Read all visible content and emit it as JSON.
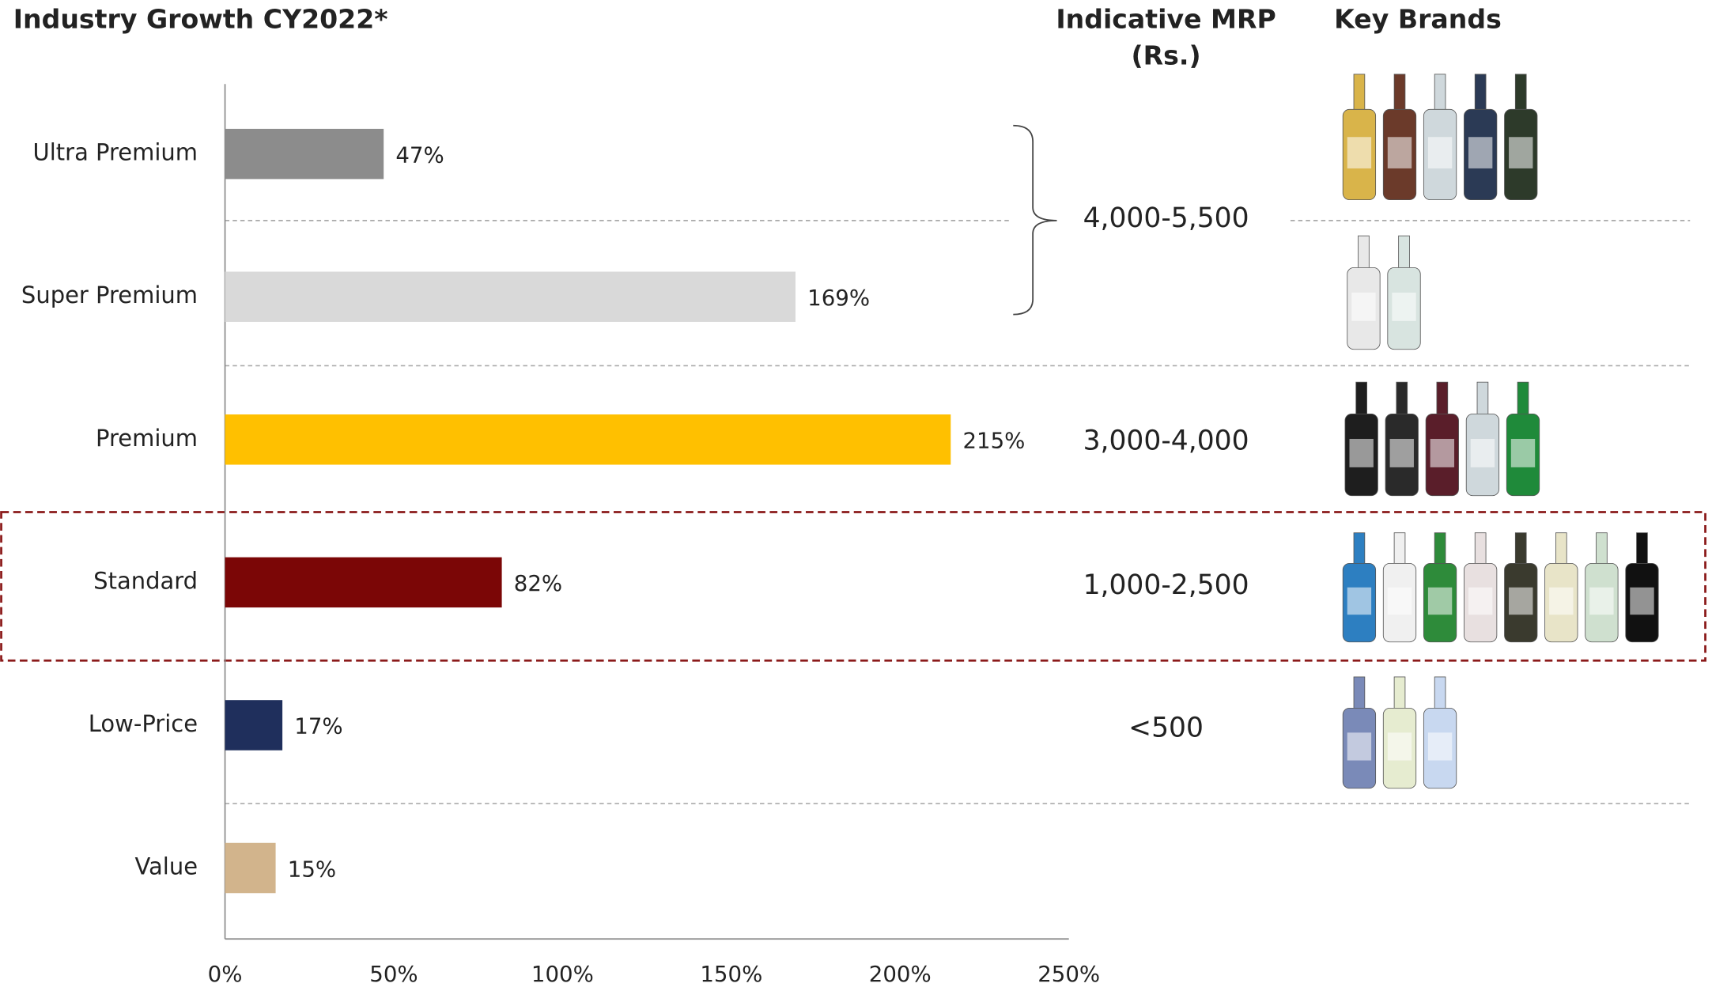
{
  "chart_data": {
    "type": "bar",
    "orientation": "horizontal",
    "title": "Industry Growth CY2022*",
    "categories": [
      "Ultra Premium",
      "Super Premium",
      "Premium",
      "Standard",
      "Low-Price",
      "Value"
    ],
    "values": [
      47,
      169,
      215,
      82,
      17,
      15
    ],
    "value_labels": [
      "47%",
      "169%",
      "215%",
      "82%",
      "17%",
      "15%"
    ],
    "colors": [
      "#8c8c8c",
      "#d9d9d9",
      "#ffc000",
      "#7b0606",
      "#1f2f5c",
      "#d2b48c"
    ],
    "xlim": [
      0,
      250
    ],
    "xticks": [
      {
        "value": 0,
        "label": "0%"
      },
      {
        "value": 50,
        "label": "50%"
      },
      {
        "value": 100,
        "label": "100%"
      },
      {
        "value": 150,
        "label": "150%"
      },
      {
        "value": 200,
        "label": "200%"
      },
      {
        "value": 250,
        "label": "250%"
      }
    ],
    "grid": false
  },
  "mrp_column": {
    "title": [
      "Indicative MRP",
      "(Rs.)"
    ],
    "ranges": [
      "4,000-5,500",
      "3,000-4,000",
      "1,000-2,500",
      "<500"
    ]
  },
  "brands_column": {
    "title": "Key Brands"
  }
}
